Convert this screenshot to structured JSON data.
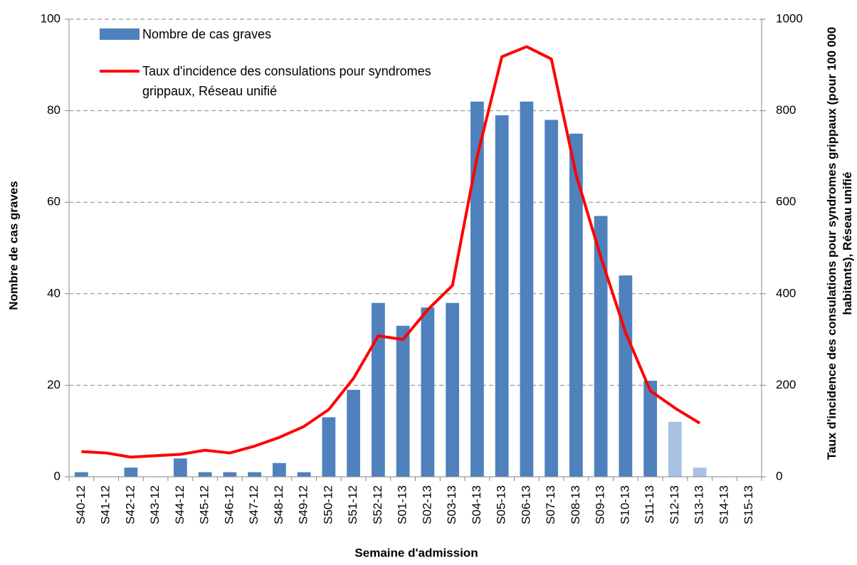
{
  "chart_data": {
    "type": "bar_line",
    "x_label": "Semaine d'admission",
    "y_label": "Nombre de cas graves",
    "y2_label": "Taux d'incidence des consulations pour syndromes grippaux (pour 100 000 habitants), Réseau unifié",
    "categories": [
      "S40-12",
      "S41-12",
      "S42-12",
      "S43-12",
      "S44-12",
      "S45-12",
      "S46-12",
      "S47-12",
      "S48-12",
      "S49-12",
      "S50-12",
      "S51-12",
      "S52-12",
      "S01-13",
      "S02-13",
      "S03-13",
      "S04-13",
      "S05-13",
      "S06-13",
      "S07-13",
      "S08-13",
      "S09-13",
      "S10-13",
      "S11-13",
      "S12-13",
      "S13-13",
      "S14-13",
      "S15-13"
    ],
    "series": [
      {
        "name": "Nombre de cas graves",
        "type": "bar",
        "color": "#4f81bd",
        "colors": [
          "#4f81bd",
          "#4f81bd",
          "#4f81bd",
          "#4f81bd",
          "#4f81bd",
          "#4f81bd",
          "#4f81bd",
          "#4f81bd",
          "#4f81bd",
          "#4f81bd",
          "#4f81bd",
          "#4f81bd",
          "#4f81bd",
          "#4f81bd",
          "#4f81bd",
          "#4f81bd",
          "#4f81bd",
          "#4f81bd",
          "#4f81bd",
          "#4f81bd",
          "#4f81bd",
          "#4f81bd",
          "#4f81bd",
          "#4f81bd",
          "#a9c1e2",
          "#a9c1e2",
          "#4f81bd",
          "#4f81bd"
        ],
        "values": [
          1,
          0,
          2,
          0,
          4,
          1,
          1,
          1,
          3,
          1,
          13,
          19,
          38,
          33,
          37,
          38,
          82,
          79,
          82,
          78,
          75,
          57,
          44,
          21,
          12,
          2,
          0,
          0
        ]
      },
      {
        "name": "Taux d'incidence des consulations pour syndromes grippaux, Réseau unifié",
        "type": "line",
        "axis": "y2",
        "color": "#ff0000",
        "values": [
          55,
          52,
          43,
          46,
          49,
          58,
          52,
          67,
          86,
          110,
          147,
          215,
          308,
          300,
          365,
          418,
          700,
          918,
          940,
          913,
          660,
          480,
          315,
          188,
          150,
          117,
          null,
          null
        ]
      }
    ],
    "ylim": [
      0,
      100
    ],
    "yticks": [
      0,
      20,
      40,
      60,
      80,
      100
    ],
    "y2lim": [
      0,
      1000
    ],
    "y2ticks": [
      0,
      200,
      400,
      600,
      800,
      1000
    ],
    "grid": true
  }
}
